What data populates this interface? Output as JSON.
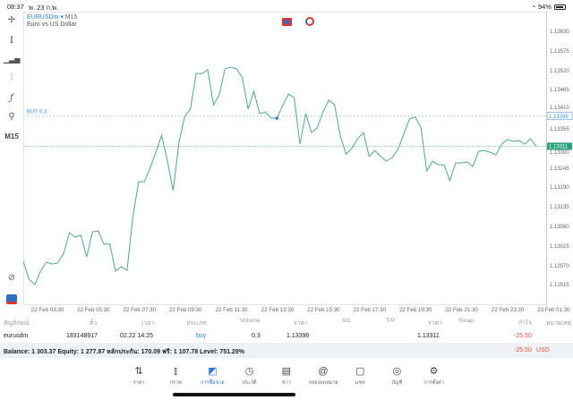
{
  "status": {
    "time": "08:37",
    "date": "พ. 23 ก.พ.",
    "battery": "94%",
    "battery_level": 94
  },
  "symbol": {
    "name": "EURUSDm",
    "timeframe": "M15",
    "description": "Euro vs US Dollar"
  },
  "left_toolbar": {
    "timeframe_label": "M15",
    "icons": [
      "crosshair-icon",
      "candlestick-icon",
      "indicators-icon",
      "settings-sliders-icon",
      "function-icon",
      "objects-icon",
      "chart-zoom-icon",
      "app-logo-icon"
    ]
  },
  "colors": {
    "line": "#5fb08e",
    "buy": "#4a90e2",
    "bid": "#2aa17a",
    "loss": "#e74c3c",
    "accent": "#2b7de9"
  },
  "chart_data": {
    "type": "line",
    "yticks": [
      "1.13630",
      "1.13575",
      "1.13520",
      "1.13465",
      "1.13410",
      "1.13355",
      "1.13300",
      "1.13245",
      "1.13190",
      "1.13135",
      "1.13080",
      "1.13025",
      "1.12970",
      "1.12915"
    ],
    "xticks": [
      "22 Feb 03:30",
      "22 Feb 05:30",
      "22 Feb 07:30",
      "22 Feb 09:30",
      "22 Feb 11:30",
      "22 Feb 13:30",
      "22 Feb 15:30",
      "22 Feb 17:30",
      "22 Feb 19:30",
      "22 Feb 21:30",
      "22 Feb 23:30",
      "23 Feb 01:30"
    ],
    "values": [
      1.12987,
      1.12936,
      1.12921,
      1.12959,
      1.12984,
      1.12979,
      1.12982,
      1.13009,
      1.13067,
      1.13055,
      1.1306,
      1.12999,
      1.1307,
      1.13072,
      1.13035,
      1.13035,
      1.12959,
      1.12971,
      1.12961,
      1.1311,
      1.13211,
      1.13211,
      1.13249,
      1.13294,
      1.13342,
      1.13269,
      1.13186,
      1.1332,
      1.13395,
      1.13416,
      1.13516,
      1.13516,
      1.13527,
      1.13428,
      1.13456,
      1.13529,
      1.13534,
      1.13529,
      1.13504,
      1.13416,
      1.13466,
      1.13403,
      1.13408,
      1.1339,
      1.1339,
      1.13426,
      1.13458,
      1.13448,
      1.13317,
      1.13403,
      1.1335,
      1.13363,
      1.13408,
      1.13441,
      1.13428,
      1.1334,
      1.13289,
      1.13305,
      1.13332,
      1.1335,
      1.13282,
      1.13299,
      1.13282,
      1.13269,
      1.13279,
      1.13302,
      1.13345,
      1.13388,
      1.13393,
      1.13363,
      1.13241,
      1.13269,
      1.13259,
      1.13259,
      1.13214,
      1.13264,
      1.13264,
      1.13267,
      1.13254,
      1.13297,
      1.13299,
      1.13294,
      1.13287,
      1.13317,
      1.1333,
      1.13325,
      1.13327,
      1.13317,
      1.13332,
      1.13311
    ],
    "buy_line": {
      "label": "BUY 0.3",
      "price": "1.13396",
      "entry_index": 44
    },
    "bid_line": {
      "price": "1.13311"
    }
  },
  "table": {
    "headers": [
      "สัญลักษณ์",
      "ตั๋ว",
      "เวลา",
      "ประเภท",
      "Volume",
      "ราคา",
      "S/L",
      "T/P",
      "ราคา",
      "Swap",
      "กำไร",
      "หมายเหตุ"
    ],
    "row": {
      "symbol": "eurusdm",
      "ticket": "183148917",
      "time": "02.22 14:25",
      "type": "buy",
      "volume": "0.3",
      "open_price": "1.13396",
      "sl": "",
      "tp": "",
      "price": "1.13311",
      "swap": "",
      "profit": "-25.50",
      "comment": ""
    }
  },
  "balance": {
    "text": "Balance: 1 303.37 Equity: 1 277.87 หลักประกัน: 170.09 ฟรี: 1 107.78 Level: 751.29%",
    "profit": "-25.50",
    "currency": "USD"
  },
  "nav": [
    {
      "label": "ราคา",
      "icon": "quotes-icon"
    },
    {
      "label": "กราฟ",
      "icon": "chart-icon"
    },
    {
      "label": "การซื้อขาย",
      "icon": "trade-icon",
      "active": true
    },
    {
      "label": "ประวัติ",
      "icon": "history-icon"
    },
    {
      "label": "ข่าว",
      "icon": "news-icon"
    },
    {
      "label": "กล่องจดหมาย",
      "icon": "mailbox-icon"
    },
    {
      "label": "แชท",
      "icon": "chat-icon"
    },
    {
      "label": "บัญชี",
      "icon": "account-icon"
    },
    {
      "label": "การตั้งค่า",
      "icon": "settings-icon"
    }
  ]
}
